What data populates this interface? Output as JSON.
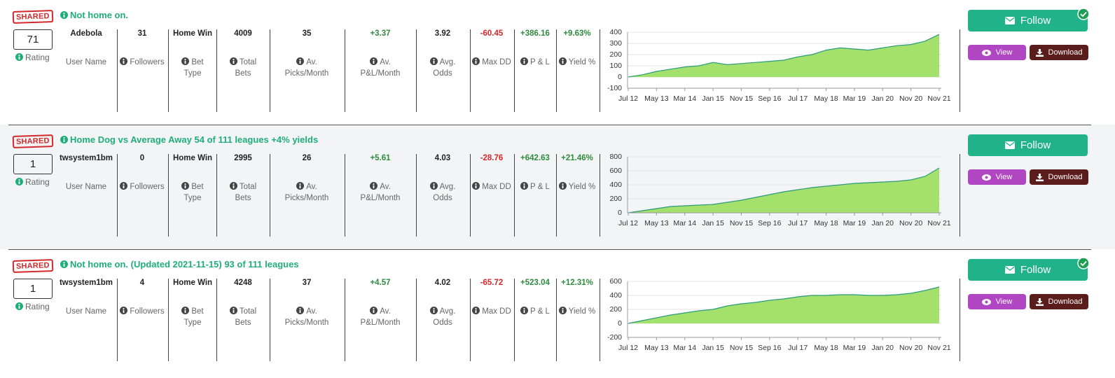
{
  "rows": [
    {
      "badge": "SHARED",
      "title": "Not home on.",
      "rating": "71",
      "rating_label": "Rating",
      "followed": true,
      "stats": [
        {
          "value": "Adebola",
          "label": "User Name"
        },
        {
          "value": "31",
          "label": "Followers"
        },
        {
          "value": "Home Win",
          "label": "Bet Type"
        },
        {
          "value": "4009",
          "label": "Total Bets"
        },
        {
          "value": "35",
          "label": "Av. Picks/Month"
        },
        {
          "value": "+3.37",
          "label": "Av. P&L/Month"
        },
        {
          "value": "3.92",
          "label": "Avg. Odds"
        },
        {
          "value": "-60.45",
          "label": "Max DD"
        },
        {
          "value": "+386.16",
          "label": "P & L"
        },
        {
          "value": "+9.63%",
          "label": "Yield %"
        }
      ],
      "chart": {
        "type": "area",
        "categories": [
          "Jul 12",
          null,
          "May 13",
          null,
          "Mar 14",
          null,
          "Jan 15",
          null,
          "Nov 15",
          null,
          "Sep 16",
          null,
          "Jul 17",
          null,
          "May 18",
          null,
          "Mar 19",
          null,
          "Jan 20",
          null,
          "Nov 20",
          null,
          "Nov 21"
        ],
        "values": [
          0,
          20,
          50,
          70,
          90,
          100,
          130,
          110,
          120,
          130,
          140,
          150,
          180,
          200,
          240,
          260,
          250,
          240,
          260,
          280,
          290,
          320,
          380
        ],
        "ylim": [
          -100,
          400
        ],
        "yticks": [
          400,
          300,
          200,
          100,
          0,
          -100
        ],
        "color": "#a3e06c",
        "line_color": "#2a9a7c",
        "grid": true
      },
      "buttons": {
        "follow": "Follow",
        "view": "View",
        "download": "Download"
      }
    },
    {
      "badge": "SHARED",
      "title": "Home Dog vs Average Away 54 of 111 leagues +4% yields",
      "rating": "1",
      "rating_label": "Rating",
      "followed": false,
      "stats": [
        {
          "value": "twsystem1bm",
          "label": "User Name"
        },
        {
          "value": "0",
          "label": "Followers"
        },
        {
          "value": "Home Win",
          "label": "Bet Type"
        },
        {
          "value": "2995",
          "label": "Total Bets"
        },
        {
          "value": "26",
          "label": "Av. Picks/Month"
        },
        {
          "value": "+5.61",
          "label": "Av. P&L/Month"
        },
        {
          "value": "4.03",
          "label": "Avg. Odds"
        },
        {
          "value": "-28.76",
          "label": "Max DD"
        },
        {
          "value": "+642.63",
          "label": "P & L"
        },
        {
          "value": "+21.46%",
          "label": "Yield %"
        }
      ],
      "chart": {
        "type": "area",
        "categories": [
          "Jul 12",
          null,
          "May 13",
          null,
          "Mar 14",
          null,
          "Jan 15",
          null,
          "Nov 15",
          null,
          "Sep 16",
          null,
          "Jul 17",
          null,
          "May 18",
          null,
          "Mar 19",
          null,
          "Jan 20",
          null,
          "Nov 20",
          null,
          "Nov 21"
        ],
        "values": [
          0,
          30,
          60,
          90,
          100,
          110,
          120,
          150,
          180,
          220,
          260,
          300,
          330,
          360,
          380,
          400,
          420,
          430,
          440,
          450,
          470,
          520,
          640
        ],
        "ylim": [
          0,
          800
        ],
        "yticks": [
          800,
          600,
          400,
          200,
          0
        ],
        "color": "#a3e06c",
        "line_color": "#2a9a7c",
        "grid": true
      },
      "buttons": {
        "follow": "Follow",
        "view": "View",
        "download": "Download"
      }
    },
    {
      "badge": "SHARED",
      "title": "Not home on. (Updated 2021-11-15) 93 of 111 leagues",
      "rating": "1",
      "rating_label": "Rating",
      "followed": true,
      "stats": [
        {
          "value": "twsystem1bm",
          "label": "User Name"
        },
        {
          "value": "4",
          "label": "Followers"
        },
        {
          "value": "Home Win",
          "label": "Bet Type"
        },
        {
          "value": "4248",
          "label": "Total Bets"
        },
        {
          "value": "37",
          "label": "Av. Picks/Month"
        },
        {
          "value": "+4.57",
          "label": "Av. P&L/Month"
        },
        {
          "value": "4.02",
          "label": "Avg. Odds"
        },
        {
          "value": "-65.72",
          "label": "Max DD"
        },
        {
          "value": "+523.04",
          "label": "P & L"
        },
        {
          "value": "+12.31%",
          "label": "Yield %"
        }
      ],
      "chart": {
        "type": "area",
        "categories": [
          "Jul 12",
          null,
          "May 13",
          null,
          "Mar 14",
          null,
          "Jan 15",
          null,
          "Nov 15",
          null,
          "Sep 16",
          null,
          "Jul 17",
          null,
          "May 18",
          null,
          "Mar 19",
          null,
          "Jan 20",
          null,
          "Nov 20",
          null,
          "Nov 21"
        ],
        "values": [
          0,
          40,
          80,
          120,
          150,
          180,
          200,
          250,
          280,
          300,
          330,
          350,
          380,
          400,
          400,
          410,
          410,
          400,
          400,
          410,
          430,
          470,
          520
        ],
        "ylim": [
          -200,
          600
        ],
        "yticks": [
          600,
          400,
          200,
          0,
          -200
        ],
        "color": "#a3e06c",
        "line_color": "#2a9a7c",
        "grid": true
      },
      "buttons": {
        "follow": "Follow",
        "view": "View",
        "download": "Download"
      }
    }
  ]
}
